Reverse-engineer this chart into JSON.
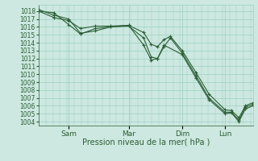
{
  "title": "",
  "xlabel": "Pression niveau de la mer( hPa )",
  "ylabel": "",
  "background_color": "#cce8e0",
  "grid_color": "#9ecfbf",
  "line_color": "#2d5e35",
  "marker_color": "#2d5e35",
  "ylim": [
    1003.5,
    1018.8
  ],
  "yticks": [
    1004,
    1005,
    1006,
    1007,
    1008,
    1009,
    1010,
    1011,
    1012,
    1013,
    1014,
    1015,
    1016,
    1017,
    1018
  ],
  "xtick_labels": [
    "Sam",
    "Mar",
    "Dim",
    "Lun"
  ],
  "xtick_positions": [
    0.14,
    0.42,
    0.67,
    0.87
  ],
  "series": [
    {
      "x": [
        0.0,
        0.07,
        0.14,
        0.195,
        0.265,
        0.335,
        0.42,
        0.49,
        0.525,
        0.555,
        0.585,
        0.615,
        0.67,
        0.735,
        0.795,
        0.87,
        0.9,
        0.935,
        0.965,
        1.0
      ],
      "y": [
        1018.0,
        1017.2,
        1016.8,
        1015.8,
        1016.1,
        1016.1,
        1016.2,
        1013.7,
        1011.8,
        1012.0,
        1013.5,
        1014.6,
        1012.7,
        1009.8,
        1007.0,
        1005.2,
        1005.2,
        1004.2,
        1005.8,
        1006.2
      ]
    },
    {
      "x": [
        0.0,
        0.07,
        0.14,
        0.195,
        0.265,
        0.335,
        0.42,
        0.49,
        0.525,
        0.555,
        0.585,
        0.615,
        0.67,
        0.735,
        0.795,
        0.87,
        0.9,
        0.935,
        0.965,
        1.0
      ],
      "y": [
        1018.2,
        1017.5,
        1017.0,
        1015.2,
        1015.5,
        1016.0,
        1016.2,
        1015.3,
        1013.8,
        1013.5,
        1014.4,
        1014.8,
        1013.0,
        1010.2,
        1007.5,
        1005.5,
        1005.4,
        1004.5,
        1006.0,
        1006.4
      ]
    },
    {
      "x": [
        0.0,
        0.07,
        0.14,
        0.195,
        0.265,
        0.335,
        0.42,
        0.49,
        0.525,
        0.555,
        0.585,
        0.67,
        0.735,
        0.795,
        0.87,
        0.9,
        0.935,
        0.965,
        1.0
      ],
      "y": [
        1018.0,
        1017.8,
        1016.3,
        1015.1,
        1015.8,
        1016.0,
        1016.1,
        1014.6,
        1012.2,
        1012.0,
        1013.7,
        1012.5,
        1009.5,
        1006.8,
        1005.0,
        1005.1,
        1004.0,
        1005.6,
        1006.0
      ]
    }
  ]
}
